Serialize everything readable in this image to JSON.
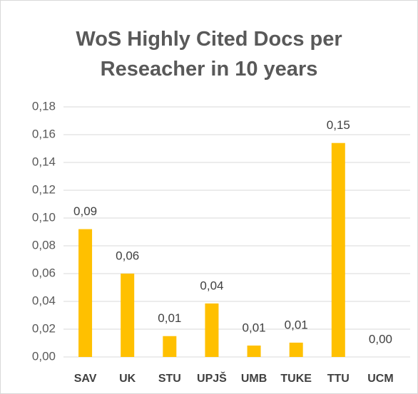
{
  "chart_data": {
    "type": "bar",
    "title": "WoS Highly Cited Docs per Reseacher in 10 years",
    "categories": [
      "SAV",
      "UK",
      "STU",
      "UPJŠ",
      "UMB",
      "TUKE",
      "TTU",
      "UCM"
    ],
    "values": [
      0.092,
      0.06,
      0.015,
      0.0385,
      0.0082,
      0.0103,
      0.154,
      0
    ],
    "value_labels": [
      "0,09",
      "0,06",
      "0,01",
      "0,04",
      "0,01",
      "0,01",
      "0,15",
      "0,00"
    ],
    "color": "#ffc000",
    "ylim": [
      0,
      0.18
    ],
    "yticks": [
      {
        "value": 0,
        "label": "0,00"
      },
      {
        "value": 0.02,
        "label": "0,02"
      },
      {
        "value": 0.04,
        "label": "0,04"
      },
      {
        "value": 0.06,
        "label": "0,06"
      },
      {
        "value": 0.08,
        "label": "0,08"
      },
      {
        "value": 0.1,
        "label": "0,10"
      },
      {
        "value": 0.12,
        "label": "0,12"
      },
      {
        "value": 0.14,
        "label": "0,14"
      },
      {
        "value": 0.16,
        "label": "0,16"
      },
      {
        "value": 0.18,
        "label": "0,18"
      }
    ],
    "grid": true
  }
}
